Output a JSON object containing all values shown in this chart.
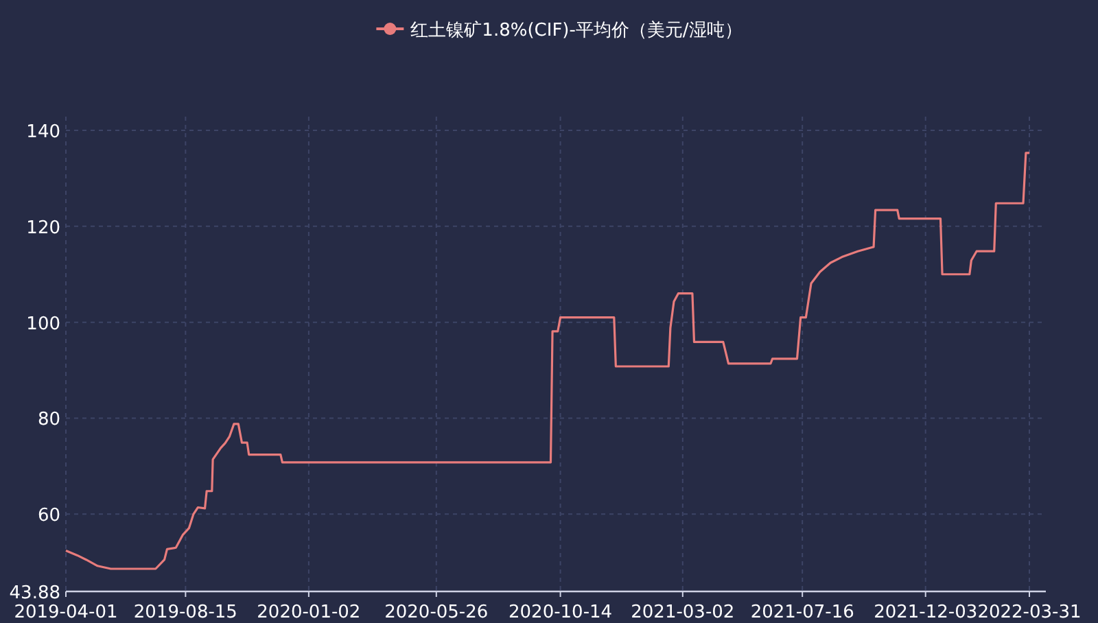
{
  "chart_data": {
    "type": "line",
    "legend": "top",
    "grid": true,
    "marker": "none",
    "line_style": "solid",
    "xlim": [
      "2019-04-01",
      "2022-03-31"
    ],
    "xticks": [
      "2019-04-01",
      "2019-08-15",
      "2020-01-02",
      "2020-05-26",
      "2020-10-14",
      "2021-03-02",
      "2021-07-16",
      "2021-12-03",
      "2022-03-31"
    ],
    "ylim": [
      43.88,
      140
    ],
    "yticks": [
      43.88,
      60,
      80,
      100,
      120,
      140
    ],
    "series": [
      {
        "name": "红土镍矿1.8%(CIF)-平均价（美元/湿吨）",
        "color": "#e87c7c",
        "x": [
          "2019-04-01",
          "2019-04-14",
          "2019-04-24",
          "2019-05-07",
          "2019-05-22",
          "2019-07-12",
          "2019-07-22",
          "2019-07-25",
          "2019-08-04",
          "2019-08-12",
          "2019-08-19",
          "2019-08-24",
          "2019-08-29",
          "2019-09-06",
          "2019-09-08",
          "2019-09-14",
          "2019-09-15",
          "2019-09-24",
          "2019-09-29",
          "2019-10-04",
          "2019-10-09",
          "2019-10-14",
          "2019-10-18",
          "2019-10-24",
          "2019-10-26",
          "2019-12-01",
          "2019-12-03",
          "2020-10-03",
          "2020-10-05",
          "2020-10-11",
          "2020-10-14",
          "2020-12-14",
          "2020-12-16",
          "2021-02-14",
          "2021-02-16",
          "2021-02-20",
          "2021-02-25",
          "2021-03-13",
          "2021-03-15",
          "2021-04-17",
          "2021-04-23",
          "2021-06-10",
          "2021-06-12",
          "2021-07-10",
          "2021-07-14",
          "2021-07-20",
          "2021-07-26",
          "2021-08-05",
          "2021-08-17",
          "2021-08-30",
          "2021-09-17",
          "2021-10-05",
          "2021-10-07",
          "2021-11-01",
          "2021-11-03",
          "2021-12-20",
          "2021-12-22",
          "2022-01-22",
          "2022-01-24",
          "2022-01-30",
          "2022-02-19",
          "2022-02-21",
          "2022-03-24",
          "2022-03-27",
          "2022-03-31"
        ],
        "values": [
          52.4,
          51.4,
          50.5,
          49.2,
          48.6,
          48.6,
          50.5,
          52.7,
          53.0,
          55.7,
          57.1,
          60.0,
          61.4,
          61.2,
          64.8,
          64.8,
          71.4,
          73.8,
          74.8,
          76.2,
          78.8,
          78.8,
          74.9,
          74.9,
          72.4,
          72.4,
          70.8,
          70.8,
          98.1,
          98.1,
          101,
          101,
          90.8,
          90.8,
          98.8,
          104.3,
          106,
          106,
          95.9,
          95.9,
          91.4,
          91.4,
          92.4,
          92.4,
          101,
          101,
          108.1,
          110.5,
          112.4,
          113.6,
          114.8,
          115.7,
          123.4,
          123.4,
          121.6,
          121.6,
          110,
          110,
          112.9,
          114.8,
          114.8,
          124.8,
          124.8,
          135.3,
          135.3
        ]
      }
    ]
  }
}
